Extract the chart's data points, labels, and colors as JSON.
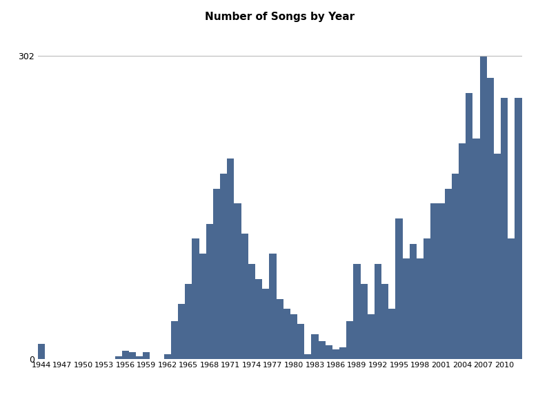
{
  "title": "Number of Songs by Year",
  "bar_color": "#4a6891",
  "background_color": "#ffffff",
  "years": [
    1944,
    1945,
    1946,
    1947,
    1948,
    1949,
    1950,
    1951,
    1952,
    1953,
    1954,
    1955,
    1956,
    1957,
    1958,
    1959,
    1960,
    1961,
    1962,
    1963,
    1964,
    1965,
    1966,
    1967,
    1968,
    1969,
    1970,
    1971,
    1972,
    1973,
    1974,
    1975,
    1976,
    1977,
    1978,
    1979,
    1980,
    1981,
    1982,
    1983,
    1984,
    1985,
    1986,
    1987,
    1988,
    1989,
    1990,
    1991,
    1992,
    1993,
    1994,
    1995,
    1996,
    1997,
    1998,
    1999,
    2000,
    2001,
    2002,
    2003,
    2004,
    2005,
    2006,
    2007,
    2008,
    2009,
    2010,
    2011,
    2012
  ],
  "values": [
    15,
    0,
    0,
    0,
    0,
    0,
    0,
    0,
    0,
    0,
    0,
    3,
    8,
    7,
    3,
    7,
    0,
    0,
    5,
    38,
    55,
    75,
    120,
    105,
    135,
    170,
    185,
    200,
    155,
    125,
    95,
    80,
    70,
    105,
    60,
    50,
    45,
    35,
    5,
    25,
    18,
    14,
    10,
    12,
    38,
    95,
    75,
    45,
    95,
    75,
    50,
    140,
    100,
    115,
    100,
    120,
    155,
    155,
    170,
    185,
    215,
    265,
    220,
    302,
    280,
    205,
    260,
    120,
    260
  ],
  "yticks": [
    0,
    302
  ],
  "xticks": [
    1944,
    1947,
    1950,
    1953,
    1956,
    1959,
    1962,
    1965,
    1968,
    1971,
    1974,
    1977,
    1980,
    1983,
    1986,
    1989,
    1992,
    1995,
    1998,
    2001,
    2004,
    2007,
    2010
  ],
  "ylim": [
    0,
    330
  ],
  "hline_y": 302,
  "hline_color": "#bbbbbb",
  "title_fontsize": 11
}
